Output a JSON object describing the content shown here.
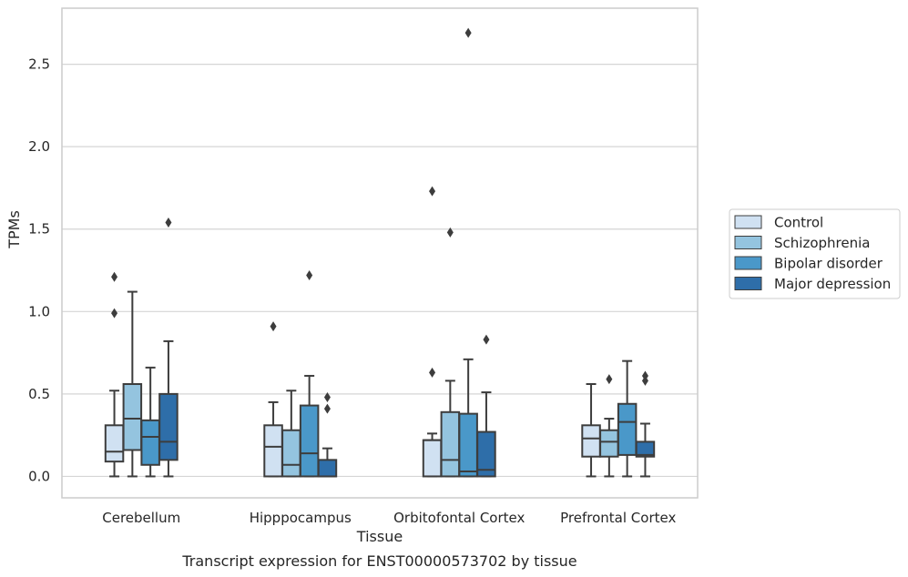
{
  "chart_data": {
    "type": "box",
    "xlabel": "Tissue",
    "ylabel": "TPMs",
    "caption": "Transcript expression for ENST00000573702 by tissue",
    "ylim": [
      -0.13,
      2.84
    ],
    "yticks": [
      "0.0",
      "0.5",
      "1.0",
      "1.5",
      "2.0",
      "2.5"
    ],
    "categories": [
      "Cerebellum",
      "Hipppocampus",
      "Orbitofontal Cortex",
      "Prefrontal Cortex"
    ],
    "grid": "horizontal",
    "legend_position": "right",
    "series": [
      {
        "name": "Control",
        "color": "#d0e1f2",
        "boxes": [
          {
            "min": 0.0,
            "q1": 0.09,
            "median": 0.15,
            "q3": 0.31,
            "max": 0.52,
            "outliers": [
              0.99,
              1.21
            ]
          },
          {
            "min": 0.0,
            "q1": 0.0,
            "median": 0.18,
            "q3": 0.31,
            "max": 0.45,
            "outliers": [
              0.91
            ]
          },
          {
            "min": 0.0,
            "q1": 0.0,
            "median": 0.22,
            "q3": 0.22,
            "max": 0.26,
            "outliers": [
              0.63,
              1.73
            ]
          },
          {
            "min": 0.0,
            "q1": 0.12,
            "median": 0.23,
            "q3": 0.31,
            "max": 0.56,
            "outliers": []
          }
        ]
      },
      {
        "name": "Schizophrenia",
        "color": "#94c4df",
        "boxes": [
          {
            "min": 0.0,
            "q1": 0.16,
            "median": 0.35,
            "q3": 0.56,
            "max": 1.12,
            "outliers": []
          },
          {
            "min": 0.0,
            "q1": 0.0,
            "median": 0.07,
            "q3": 0.28,
            "max": 0.52,
            "outliers": []
          },
          {
            "min": 0.0,
            "q1": 0.0,
            "median": 0.1,
            "q3": 0.39,
            "max": 0.58,
            "outliers": [
              1.48
            ]
          },
          {
            "min": 0.0,
            "q1": 0.12,
            "median": 0.21,
            "q3": 0.28,
            "max": 0.35,
            "outliers": [
              0.59
            ]
          }
        ]
      },
      {
        "name": "Bipolar disorder",
        "color": "#4a98c9",
        "boxes": [
          {
            "min": 0.0,
            "q1": 0.07,
            "median": 0.24,
            "q3": 0.34,
            "max": 0.66,
            "outliers": []
          },
          {
            "min": 0.0,
            "q1": 0.0,
            "median": 0.14,
            "q3": 0.43,
            "max": 0.61,
            "outliers": [
              1.22
            ]
          },
          {
            "min": 0.0,
            "q1": 0.0,
            "median": 0.03,
            "q3": 0.38,
            "max": 0.71,
            "outliers": [
              2.69
            ]
          },
          {
            "min": 0.0,
            "q1": 0.13,
            "median": 0.33,
            "q3": 0.44,
            "max": 0.7,
            "outliers": []
          }
        ]
      },
      {
        "name": "Major depression",
        "color": "#2e6ea9",
        "boxes": [
          {
            "min": 0.0,
            "q1": 0.1,
            "median": 0.21,
            "q3": 0.5,
            "max": 0.82,
            "outliers": [
              1.54
            ]
          },
          {
            "min": 0.0,
            "q1": 0.0,
            "median": 0.0,
            "q3": 0.1,
            "max": 0.17,
            "outliers": [
              0.41,
              0.48
            ]
          },
          {
            "min": 0.0,
            "q1": 0.0,
            "median": 0.04,
            "q3": 0.27,
            "max": 0.51,
            "outliers": [
              0.83
            ]
          },
          {
            "min": 0.0,
            "q1": 0.12,
            "median": 0.13,
            "q3": 0.21,
            "max": 0.32,
            "outliers": [
              0.58,
              0.61
            ]
          }
        ]
      }
    ]
  }
}
